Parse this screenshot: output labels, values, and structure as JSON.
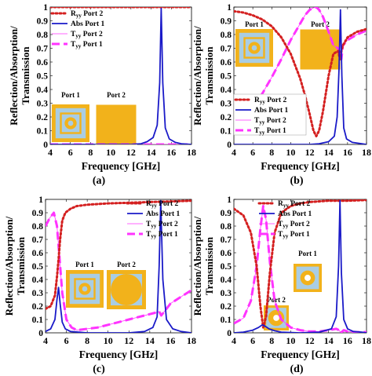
{
  "figure": {
    "panels": [
      {
        "id": "a",
        "caption": "(a)"
      },
      {
        "id": "b",
        "caption": "(b)"
      },
      {
        "id": "c",
        "caption": "(c)"
      },
      {
        "id": "d",
        "caption": "(d)"
      }
    ]
  },
  "colors": {
    "reflection": "#d42020",
    "absorption": "#1a1ac8",
    "transmission": "#ff33ff",
    "port_frame": "#f2b21b",
    "port_inner": "#a9cde3",
    "port_fill": "#f2b21b",
    "port_hole": "#ffffff"
  },
  "chart_data": [
    {
      "panel": "a",
      "type": "line",
      "xlabel": "Frequency [GHz]",
      "ylabel": "Reflection/Absorption/ Transmission",
      "xlim": [
        4,
        18
      ],
      "ylim": [
        0,
        1
      ],
      "xticks": [
        4,
        6,
        8,
        10,
        12,
        14,
        16,
        18
      ],
      "yticks": [
        0,
        0.1,
        0.2,
        0.3,
        0.4,
        0.5,
        0.6,
        0.7,
        0.8,
        0.9,
        1
      ],
      "legend_position": "top-left",
      "insets": [
        {
          "label": "Port 1",
          "shape": "split-ring"
        },
        {
          "label": "Port 2",
          "shape": "solid-square"
        }
      ],
      "series": [
        {
          "name": "R_yy Port 2",
          "label_main": "R",
          "label_sub": "yy",
          "label_rest": " Port 2",
          "role": "reflection",
          "style": "dotted",
          "x": [
            4,
            6,
            8,
            10,
            12,
            14,
            18
          ],
          "y": [
            1,
            1,
            1,
            1,
            1,
            1,
            1
          ]
        },
        {
          "name": "Abs Port 1",
          "label_main": "Abs Port 1",
          "label_sub": "",
          "label_rest": "",
          "role": "absorption",
          "style": "solid",
          "x": [
            4,
            8,
            10,
            12,
            13,
            13.6,
            14.2,
            14.6,
            14.85,
            15,
            15.15,
            15.4,
            15.8,
            16.4,
            17,
            18
          ],
          "y": [
            0,
            0,
            0,
            0,
            0.005,
            0.02,
            0.05,
            0.14,
            0.45,
            0.99,
            0.45,
            0.12,
            0.04,
            0.015,
            0.005,
            0
          ]
        },
        {
          "name": "T_yy Port 2",
          "label_main": "T",
          "label_sub": "yy",
          "label_rest": " Port 2",
          "role": "transmission-thin",
          "style": "solid",
          "x": [
            4,
            18
          ],
          "y": [
            0,
            0
          ]
        },
        {
          "name": "T_yy Port 1",
          "label_main": "T",
          "label_sub": "yy",
          "label_rest": " Port 1",
          "role": "transmission",
          "style": "dashed",
          "x": [
            4,
            18
          ],
          "y": [
            0,
            0
          ]
        }
      ]
    },
    {
      "panel": "b",
      "type": "line",
      "xlabel": "Frequency [GHz]",
      "ylabel": "Reflection/Absorption/ Transmission",
      "xlim": [
        4,
        18
      ],
      "ylim": [
        0,
        1
      ],
      "xticks": [
        4,
        6,
        8,
        10,
        12,
        14,
        16,
        18
      ],
      "yticks": [
        0,
        0.1,
        0.2,
        0.3,
        0.4,
        0.5,
        0.6,
        0.7,
        0.8,
        0.9,
        1
      ],
      "legend_position": "bottom-center",
      "insets": [
        {
          "label": "Port 1",
          "shape": "split-ring"
        },
        {
          "label": "Port 2",
          "shape": "solid-square"
        }
      ],
      "series": [
        {
          "name": "R_yy Port 2",
          "label_main": "R",
          "label_sub": "yy",
          "label_rest": " Port 2",
          "role": "reflection",
          "style": "dotted",
          "x": [
            4,
            5,
            6,
            7,
            8,
            9,
            10,
            11,
            11.5,
            12,
            12.4,
            12.7,
            13,
            13.4,
            14,
            14.5,
            15,
            15.2,
            15.35,
            15.5,
            16,
            17,
            18
          ],
          "y": [
            0.97,
            0.96,
            0.94,
            0.91,
            0.86,
            0.78,
            0.66,
            0.48,
            0.36,
            0.22,
            0.1,
            0.06,
            0.1,
            0.24,
            0.5,
            0.66,
            0.68,
            0.62,
            0.68,
            0.72,
            0.78,
            0.82,
            0.84
          ]
        },
        {
          "name": "Abs Port 1",
          "label_main": "Abs Port 1",
          "label_sub": "",
          "label_rest": "",
          "role": "absorption",
          "style": "solid",
          "x": [
            4,
            8,
            12,
            13,
            14,
            14.6,
            14.9,
            15.1,
            15.25,
            15.4,
            15.6,
            15.9,
            16.5,
            17.5,
            18
          ],
          "y": [
            0,
            0,
            0,
            0.005,
            0.02,
            0.06,
            0.2,
            0.55,
            0.98,
            0.5,
            0.12,
            0.04,
            0.015,
            0.005,
            0
          ]
        },
        {
          "name": "T_yy Port 2",
          "label_main": "T",
          "label_sub": "yy",
          "label_rest": " Port 2",
          "role": "transmission-thin",
          "style": "solid",
          "x": [
            4,
            5,
            6,
            7,
            8,
            9,
            10,
            11,
            11.5,
            12,
            12.4,
            12.7,
            13,
            13.4,
            14,
            14.5,
            15,
            15.2,
            15.35,
            15.5,
            16,
            17,
            18
          ],
          "y": [
            0.18,
            0.22,
            0.28,
            0.37,
            0.49,
            0.62,
            0.76,
            0.88,
            0.94,
            0.98,
            0.995,
            1.0,
            0.98,
            0.93,
            0.82,
            0.72,
            0.7,
            0.66,
            0.62,
            0.72,
            0.76,
            0.8,
            0.83
          ]
        },
        {
          "name": "T_yy Port 1",
          "label_main": "T",
          "label_sub": "yy",
          "label_rest": " Port 1",
          "role": "transmission",
          "style": "dashed",
          "x": [
            4,
            5,
            6,
            7,
            8,
            9,
            10,
            11,
            11.5,
            12,
            12.4,
            12.7,
            13,
            13.4,
            14,
            14.5,
            15,
            15.2,
            15.35,
            15.5,
            16,
            17,
            18
          ],
          "y": [
            0.18,
            0.22,
            0.28,
            0.37,
            0.49,
            0.62,
            0.76,
            0.88,
            0.94,
            0.98,
            0.995,
            1.0,
            0.98,
            0.93,
            0.82,
            0.72,
            0.7,
            0.66,
            0.62,
            0.72,
            0.76,
            0.8,
            0.83
          ]
        }
      ]
    },
    {
      "panel": "c",
      "type": "line",
      "xlabel": "Frequency [GHz]",
      "ylabel": "Reflection/Absorption/ Transmission",
      "xlim": [
        4,
        18
      ],
      "ylim": [
        0,
        1
      ],
      "xticks": [
        4,
        6,
        8,
        10,
        12,
        14,
        16,
        18
      ],
      "yticks": [
        0,
        0.1,
        0.2,
        0.3,
        0.4,
        0.5,
        0.6,
        0.7,
        0.8,
        0.9,
        1
      ],
      "legend_position": "top-right",
      "insets": [
        {
          "label": "Port 1",
          "shape": "split-ring"
        },
        {
          "label": "Port 2",
          "shape": "disk"
        }
      ],
      "series": [
        {
          "name": "R_yy Port 2",
          "label_main": "R",
          "label_sub": "yy",
          "label_rest": " Port 2",
          "role": "reflection",
          "style": "dotted",
          "x": [
            4,
            4.5,
            4.9,
            5.1,
            5.25,
            5.4,
            5.6,
            5.9,
            6.4,
            7,
            8,
            10,
            12,
            14,
            16,
            18
          ],
          "y": [
            0.18,
            0.2,
            0.28,
            0.42,
            0.55,
            0.7,
            0.84,
            0.9,
            0.93,
            0.95,
            0.96,
            0.97,
            0.975,
            0.98,
            0.985,
            0.99
          ]
        },
        {
          "name": "Abs Port 1",
          "label_main": "Abs Port 1",
          "label_sub": "",
          "label_rest": "",
          "role": "absorption",
          "style": "solid",
          "x": [
            4,
            4.5,
            4.9,
            5.1,
            5.25,
            5.4,
            5.6,
            5.9,
            6.4,
            8,
            12,
            13.5,
            14.3,
            14.7,
            14.9,
            15.05,
            15.25,
            15.6,
            16.2,
            17,
            18
          ],
          "y": [
            0.01,
            0.03,
            0.1,
            0.25,
            0.34,
            0.22,
            0.08,
            0.03,
            0.01,
            0,
            0,
            0.01,
            0.04,
            0.12,
            0.5,
            0.99,
            0.4,
            0.1,
            0.03,
            0.01,
            0
          ]
        },
        {
          "name": "T_yy Port 2",
          "label_main": "T",
          "label_sub": "yy",
          "label_rest": " Port 2",
          "role": "transmission-thin",
          "style": "solid",
          "x": [
            4,
            4.4,
            4.8,
            5.1,
            5.3,
            5.6,
            6,
            6.5,
            7,
            8,
            9,
            10,
            11,
            12,
            13,
            14,
            14.5,
            14.9,
            15.1,
            15.3,
            15.6,
            16,
            17,
            18
          ],
          "y": [
            0.8,
            0.86,
            0.9,
            0.8,
            0.6,
            0.3,
            0.1,
            0.04,
            0.02,
            0.03,
            0.04,
            0.06,
            0.08,
            0.1,
            0.12,
            0.14,
            0.15,
            0.16,
            0.13,
            0.15,
            0.18,
            0.22,
            0.27,
            0.32
          ]
        },
        {
          "name": "T_yy Port 1",
          "label_main": "T",
          "label_sub": "yy",
          "label_rest": " Port 1",
          "role": "transmission",
          "style": "dashed",
          "x": [
            4,
            4.4,
            4.8,
            5.1,
            5.3,
            5.6,
            6,
            6.5,
            7,
            8,
            9,
            10,
            11,
            12,
            13,
            14,
            14.5,
            14.9,
            15.1,
            15.3,
            15.6,
            16,
            17,
            18
          ],
          "y": [
            0.8,
            0.86,
            0.9,
            0.8,
            0.6,
            0.3,
            0.1,
            0.04,
            0.02,
            0.03,
            0.04,
            0.06,
            0.08,
            0.1,
            0.12,
            0.14,
            0.15,
            0.16,
            0.13,
            0.15,
            0.18,
            0.22,
            0.27,
            0.32
          ]
        }
      ]
    },
    {
      "panel": "d",
      "type": "line",
      "xlabel": "Frequency [GHz]",
      "ylabel": "Reflection/Absorption/ Transmission",
      "xlim": [
        4,
        18
      ],
      "ylim": [
        0,
        1
      ],
      "xticks": [
        4,
        6,
        8,
        10,
        12,
        14,
        16,
        18
      ],
      "yticks": [
        0,
        0.1,
        0.2,
        0.3,
        0.4,
        0.5,
        0.6,
        0.7,
        0.8,
        0.9,
        1
      ],
      "legend_position": "top-right",
      "insets": [
        {
          "label": "Port 1",
          "shape": "ring-small"
        },
        {
          "label": "Port 2",
          "shape": "ring-disk"
        }
      ],
      "series": [
        {
          "name": "R_yy Port 2",
          "label_main": "R",
          "label_sub": "yy",
          "label_rest": " Port 2",
          "role": "reflection",
          "style": "dotted",
          "x": [
            4,
            5,
            5.8,
            6.4,
            6.8,
            7.1,
            7.4,
            7.8,
            8.3,
            9,
            10,
            11,
            12,
            14,
            16,
            18
          ],
          "y": [
            0.93,
            0.88,
            0.75,
            0.5,
            0.2,
            0.04,
            0.12,
            0.45,
            0.75,
            0.9,
            0.95,
            0.97,
            0.98,
            0.99,
            0.99,
            0.995
          ]
        },
        {
          "name": "Abs Port 1",
          "label_main": "Abs Port 1",
          "label_sub": "",
          "label_rest": "",
          "role": "absorption",
          "style": "solid",
          "x": [
            4,
            5,
            6,
            6.6,
            7,
            7.3,
            7.7,
            8.3,
            9,
            11,
            13,
            14.3,
            14.8,
            15.05,
            15.2,
            15.35,
            15.6,
            16,
            16.6,
            17.5,
            18
          ],
          "y": [
            0,
            0.005,
            0.02,
            0.04,
            0.06,
            0.05,
            0.03,
            0.015,
            0.005,
            0,
            0.005,
            0.03,
            0.12,
            0.5,
            0.99,
            0.45,
            0.1,
            0.03,
            0.01,
            0.005,
            0
          ]
        },
        {
          "name": "T_yy Port 2",
          "label_main": "T",
          "label_sub": "yy",
          "label_rest": " Port 2",
          "role": "transmission-thin",
          "style": "solid",
          "x": [
            4,
            5,
            5.8,
            6.4,
            6.8,
            7.1,
            7.4,
            7.8,
            8.3,
            9,
            10,
            11,
            12,
            13,
            14,
            14.8,
            15.1,
            15.3,
            15.6,
            16,
            17,
            18
          ],
          "y": [
            0.07,
            0.11,
            0.24,
            0.5,
            0.78,
            0.95,
            0.85,
            0.53,
            0.24,
            0.1,
            0.04,
            0.02,
            0.01,
            0.01,
            0.02,
            0.03,
            0.02,
            0.0,
            0.02,
            0.01,
            0.005,
            0.005
          ]
        },
        {
          "name": "T_yy Port 1",
          "label_main": "T",
          "label_sub": "yy",
          "label_rest": " Port 1",
          "role": "transmission",
          "style": "dashed",
          "x": [
            4,
            5,
            5.8,
            6.4,
            6.8,
            7.1,
            7.4,
            7.8,
            8.3,
            9,
            10,
            11,
            12,
            13,
            14,
            14.8,
            15.1,
            15.3,
            15.6,
            16,
            17,
            18
          ],
          "y": [
            0.07,
            0.11,
            0.24,
            0.5,
            0.78,
            0.95,
            0.85,
            0.53,
            0.24,
            0.1,
            0.04,
            0.02,
            0.01,
            0.01,
            0.02,
            0.03,
            0.02,
            0.0,
            0.02,
            0.01,
            0.005,
            0.005
          ]
        }
      ]
    }
  ]
}
